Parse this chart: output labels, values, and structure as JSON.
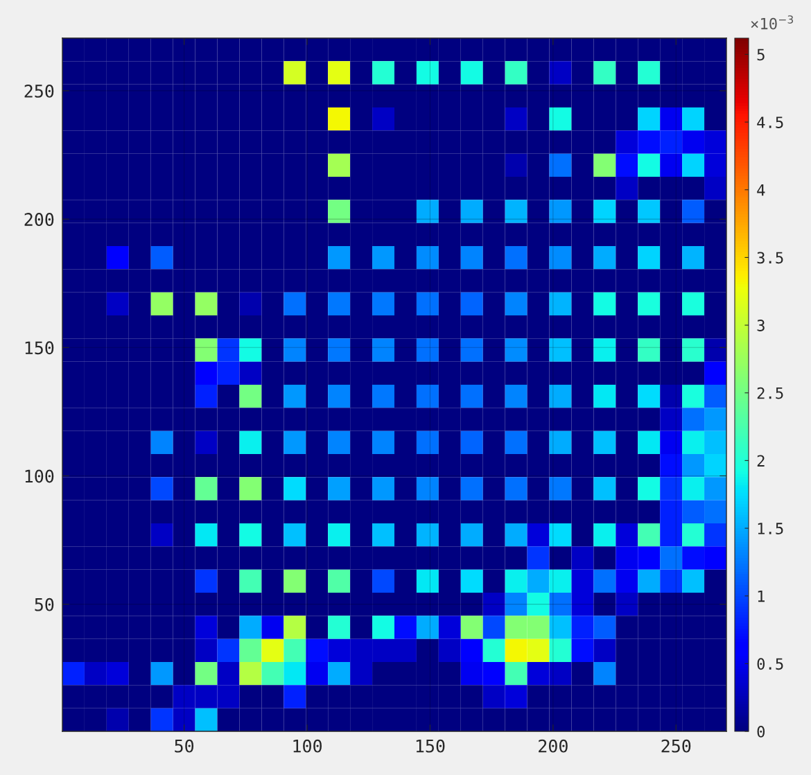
{
  "chart_data": {
    "type": "heatmap",
    "xlim": [
      0.5,
      270.5
    ],
    "ylim": [
      0.5,
      270.5
    ],
    "xticks": [
      50,
      100,
      150,
      200,
      250
    ],
    "yticks": [
      50,
      100,
      150,
      200,
      250
    ],
    "clim": [
      0,
      5.12
    ],
    "cticks": [
      0,
      0.5,
      1,
      1.5,
      2,
      2.5,
      3,
      3.5,
      4,
      4.5,
      5
    ],
    "clabel": "×10$^{−3}$",
    "grid": true,
    "cells": [
      [
        0,
        0,
        0,
        0,
        0,
        0,
        0,
        0,
        0,
        0,
        0,
        0,
        0,
        0,
        0,
        0,
        0,
        0,
        0,
        0,
        0,
        0,
        0,
        0,
        0,
        0,
        0,
        0,
        0,
        0
      ],
      [
        0,
        0,
        0,
        0,
        0,
        0,
        0,
        0,
        0,
        0,
        3.1,
        0,
        3.2,
        0,
        2.0,
        0,
        1.9,
        0,
        1.9,
        0,
        2.1,
        0,
        0.3,
        0,
        2.1,
        0,
        2.0,
        0,
        0,
        0
      ],
      [
        0,
        0,
        0,
        0,
        0,
        0,
        0,
        0,
        0,
        0,
        0,
        0,
        0,
        0,
        0,
        0,
        0,
        0,
        0,
        0,
        0,
        0,
        0,
        0,
        0,
        0,
        0,
        0,
        0,
        0
      ],
      [
        0,
        0,
        0,
        0,
        0,
        0,
        0,
        0,
        0,
        0,
        0,
        0,
        3.3,
        0,
        0.3,
        0,
        0,
        0,
        0,
        0,
        0.3,
        0,
        1.9,
        0,
        0,
        0,
        1.7,
        0.5,
        1.7,
        0
      ],
      [
        0,
        0,
        0,
        0,
        0,
        0,
        0,
        0,
        0,
        0,
        0,
        0,
        0,
        0,
        0,
        0,
        0,
        0,
        0,
        0,
        0,
        0,
        0,
        0,
        0,
        0.4,
        0.7,
        0.8,
        0.5,
        0.4
      ],
      [
        0,
        0,
        0,
        0,
        0,
        0,
        0,
        0,
        0,
        0,
        0,
        0,
        2.8,
        0,
        0,
        0,
        0,
        0,
        0,
        0,
        0.2,
        0,
        1.2,
        0,
        2.6,
        0.7,
        1.9,
        0.5,
        1.7,
        0.4
      ],
      [
        0,
        0,
        0,
        0,
        0,
        0,
        0,
        0,
        0,
        0,
        0,
        0,
        0,
        0,
        0,
        0,
        0,
        0,
        0,
        0,
        0,
        0,
        0,
        0,
        0,
        0.3,
        0,
        0,
        0,
        0.3
      ],
      [
        0,
        0,
        0,
        0,
        0,
        0,
        0,
        0,
        0,
        0,
        0,
        0,
        2.5,
        0,
        0,
        0,
        1.5,
        0,
        1.5,
        0,
        1.55,
        0,
        1.4,
        0,
        1.7,
        0,
        1.65,
        0,
        1.1,
        0
      ],
      [
        0,
        0,
        0,
        0,
        0,
        0,
        0,
        0,
        0,
        0,
        0,
        0,
        0,
        0,
        0,
        0,
        0,
        0,
        0,
        0,
        0,
        0,
        0,
        0,
        0,
        0,
        0,
        0,
        0,
        0
      ],
      [
        0,
        0,
        0.6,
        0,
        1.1,
        0,
        0,
        0,
        0,
        0,
        0,
        0,
        1.4,
        0,
        1.4,
        0,
        1.35,
        0,
        1.3,
        0,
        1.2,
        0,
        1.35,
        0,
        1.5,
        0,
        1.7,
        0,
        1.55,
        0
      ],
      [
        0,
        0,
        0,
        0,
        0,
        0,
        0,
        0,
        0,
        0,
        0,
        0,
        0,
        0,
        0,
        0,
        0,
        0,
        0,
        0,
        0,
        0,
        0,
        0,
        0,
        0,
        0,
        0,
        0,
        0
      ],
      [
        0,
        0,
        0.3,
        0,
        2.7,
        0,
        2.7,
        0,
        0.2,
        0,
        1.2,
        0,
        1.25,
        0,
        1.25,
        0,
        1.2,
        0,
        1.15,
        0,
        1.3,
        0,
        1.55,
        0,
        1.9,
        0,
        1.95,
        0,
        1.95,
        0
      ],
      [
        0,
        0,
        0,
        0,
        0,
        0,
        0,
        0,
        0,
        0,
        0,
        0,
        0,
        0,
        0,
        0,
        0,
        0,
        0,
        0,
        0,
        0,
        0,
        0,
        0,
        0,
        0,
        0,
        0,
        0
      ],
      [
        0,
        0,
        0,
        0,
        0,
        0,
        2.6,
        0.9,
        1.9,
        0,
        1.3,
        0,
        1.25,
        0,
        1.3,
        0,
        1.2,
        0,
        1.2,
        0,
        1.35,
        0,
        1.6,
        0,
        1.85,
        0,
        2.1,
        0,
        2.05,
        0.2
      ],
      [
        0,
        0,
        0,
        0,
        0,
        0,
        0.6,
        0.8,
        0.3,
        0,
        0,
        0,
        0,
        0,
        0,
        0,
        0,
        0,
        0,
        0,
        0,
        0,
        0,
        0,
        0,
        0,
        0,
        0,
        0,
        0.6
      ],
      [
        0,
        0,
        0,
        0,
        0,
        0,
        0.8,
        0,
        2.5,
        0,
        1.4,
        0,
        1.3,
        0,
        1.25,
        0,
        1.2,
        0,
        1.2,
        0,
        1.3,
        0,
        1.5,
        0,
        1.8,
        0,
        1.75,
        0.2,
        1.95,
        1.1
      ],
      [
        0,
        0,
        0,
        0,
        0,
        0,
        0,
        0,
        0,
        0,
        0,
        0,
        0,
        0,
        0,
        0,
        0,
        0,
        0,
        0,
        0,
        0,
        0,
        0,
        0,
        0,
        0,
        0.3,
        1.2,
        1.4
      ],
      [
        0,
        0,
        0,
        0,
        1.3,
        0,
        0.3,
        0,
        1.85,
        0,
        1.4,
        0,
        1.3,
        0,
        1.3,
        0,
        1.2,
        0,
        1.15,
        0,
        1.2,
        0,
        1.5,
        0,
        1.6,
        0,
        1.8,
        0.5,
        1.85,
        1.6
      ],
      [
        0,
        0,
        0,
        0,
        0,
        0,
        0,
        0,
        0,
        0,
        0,
        0,
        0,
        0,
        0,
        0,
        0,
        0,
        0,
        0,
        0,
        0,
        0,
        0,
        0,
        0,
        0,
        0.7,
        1.4,
        1.7
      ],
      [
        0,
        0,
        0,
        0,
        1.0,
        0,
        2.4,
        0,
        2.6,
        0,
        1.75,
        0,
        1.45,
        0,
        1.4,
        0,
        1.3,
        0,
        1.2,
        0,
        1.2,
        0,
        1.25,
        0,
        1.6,
        0,
        1.9,
        0.9,
        1.85,
        1.4
      ],
      [
        0,
        0,
        0,
        0,
        0,
        0,
        0,
        0,
        0,
        0,
        0,
        0,
        0,
        0,
        0,
        0,
        0,
        0,
        0,
        0,
        0,
        0,
        0,
        0,
        0,
        0,
        0,
        0.8,
        1.1,
        1.2
      ],
      [
        0,
        0,
        0,
        0,
        0.3,
        0,
        1.8,
        0,
        1.9,
        0,
        1.6,
        0,
        1.85,
        0,
        1.6,
        0,
        1.55,
        0,
        1.5,
        0,
        1.5,
        0.4,
        1.75,
        0,
        1.85,
        0.4,
        2.2,
        0.8,
        2.0,
        0.9
      ],
      [
        0,
        0,
        0,
        0,
        0,
        0,
        0,
        0,
        0,
        0,
        0,
        0,
        0,
        0,
        0,
        0,
        0,
        0,
        0,
        0,
        0,
        0.9,
        0,
        0.3,
        0,
        0.5,
        0.6,
        1.2,
        0.7,
        0.6
      ],
      [
        0,
        0,
        0,
        0,
        0,
        0,
        0.9,
        0,
        2.2,
        0,
        2.6,
        0,
        2.3,
        0,
        1.0,
        0,
        1.8,
        0,
        1.75,
        0,
        1.85,
        1.5,
        1.85,
        0.4,
        1.2,
        0.5,
        1.5,
        0.9,
        1.6,
        0
      ],
      [
        0,
        0,
        0,
        0,
        0,
        0,
        0,
        0,
        0,
        0,
        0,
        0,
        0,
        0,
        0,
        0,
        0,
        0,
        0,
        0.3,
        1.3,
        1.9,
        1.2,
        0.4,
        0,
        0.3,
        0,
        0,
        0,
        0
      ],
      [
        0,
        0,
        0,
        0,
        0,
        0,
        0.4,
        0,
        1.5,
        0.5,
        2.9,
        0,
        2.0,
        0,
        1.9,
        0.7,
        1.5,
        0.4,
        2.6,
        1.0,
        2.6,
        2.6,
        1.6,
        0.8,
        1.1,
        0,
        0,
        0,
        0,
        0
      ],
      [
        0,
        0,
        0,
        0,
        0,
        0,
        0.3,
        0.9,
        2.4,
        3.2,
        2.2,
        0.7,
        0.4,
        0.3,
        0.3,
        0.3,
        0,
        0.3,
        0.6,
        2.0,
        3.3,
        3.2,
        2.0,
        0.7,
        0.3,
        0,
        0,
        0,
        0,
        0
      ],
      [
        0.8,
        0.3,
        0.4,
        0,
        1.4,
        0,
        2.5,
        0.3,
        2.9,
        2.2,
        1.8,
        0.5,
        1.5,
        0.3,
        0,
        0,
        0,
        0,
        0.5,
        0.6,
        2.2,
        0.4,
        0.3,
        0,
        1.3,
        0,
        0,
        0,
        0,
        0
      ],
      [
        0,
        0,
        0,
        0,
        0,
        0.3,
        0.3,
        0.3,
        0,
        0,
        0.8,
        0,
        0,
        0,
        0,
        0,
        0,
        0,
        0,
        0.3,
        0.4,
        0,
        0,
        0,
        0,
        0,
        0,
        0,
        0,
        0
      ],
      [
        0,
        0,
        0.2,
        0,
        0.9,
        0.3,
        1.6,
        0,
        0,
        0,
        0,
        0,
        0,
        0,
        0,
        0,
        0,
        0,
        0,
        0,
        0,
        0,
        0,
        0,
        0,
        0,
        0,
        0,
        0,
        0
      ]
    ]
  }
}
